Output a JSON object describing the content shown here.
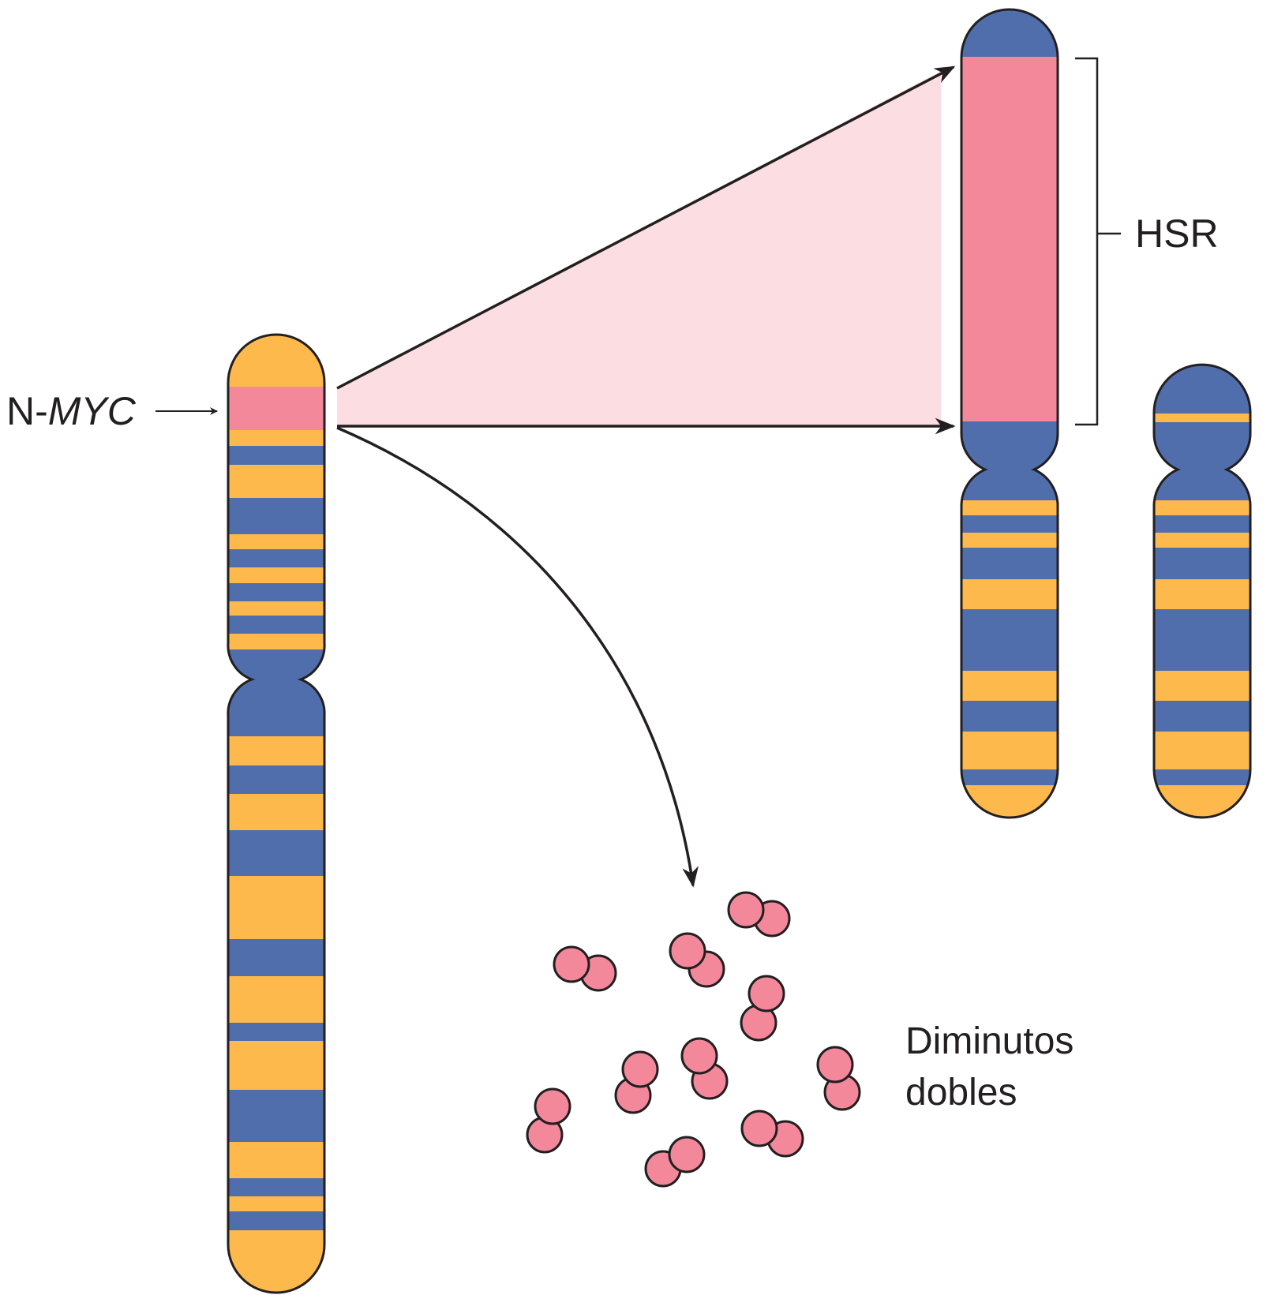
{
  "labels": {
    "gene_prefix": "N-",
    "gene_italic": "MYC",
    "hsr": "HSR",
    "dm_line1": "Diminutos",
    "dm_line2": "dobles"
  },
  "colors": {
    "blue": "#506eac",
    "orange": "#fdb94c",
    "pink": "#f3889b",
    "light_pink": "#fcdde1",
    "outline": "#231f20"
  }
}
